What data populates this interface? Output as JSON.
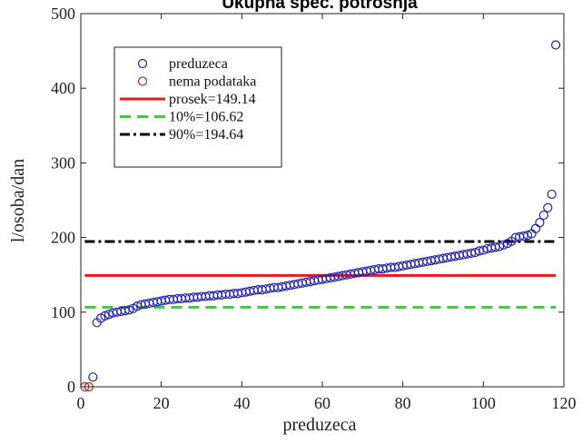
{
  "chart_data": {
    "type": "scatter",
    "title": "Ukupna spec. potrošnja",
    "xlabel": "preduzeca",
    "ylabel": "l/osoba/dan",
    "xlim": [
      0,
      120
    ],
    "ylim": [
      0,
      500
    ],
    "xticks": [
      0,
      20,
      40,
      60,
      80,
      100,
      120
    ],
    "yticks": [
      0,
      100,
      200,
      300,
      400,
      500
    ],
    "grid": false,
    "legend_position": "top-left",
    "series": [
      {
        "name": "preduzeca",
        "kind": "marker",
        "marker": "circle",
        "color": "#1f1fb4",
        "x": [
          3,
          4,
          5,
          6,
          7,
          8,
          9,
          10,
          11,
          12,
          13,
          14,
          15,
          16,
          17,
          18,
          19,
          20,
          21,
          22,
          23,
          24,
          25,
          26,
          27,
          28,
          29,
          30,
          31,
          32,
          33,
          34,
          35,
          36,
          37,
          38,
          39,
          40,
          41,
          42,
          43,
          44,
          45,
          46,
          47,
          48,
          49,
          50,
          51,
          52,
          53,
          54,
          55,
          56,
          57,
          58,
          59,
          60,
          61,
          62,
          63,
          64,
          65,
          66,
          67,
          68,
          69,
          70,
          71,
          72,
          73,
          74,
          75,
          76,
          77,
          78,
          79,
          80,
          81,
          82,
          83,
          84,
          85,
          86,
          87,
          88,
          89,
          90,
          91,
          92,
          93,
          94,
          95,
          96,
          97,
          98,
          99,
          100,
          101,
          102,
          103,
          104,
          105,
          106,
          107,
          108,
          109,
          110,
          111,
          112,
          113,
          114,
          115,
          116,
          117,
          118
        ],
        "y": [
          13,
          86,
          92,
          95,
          97,
          99,
          100,
          101,
          102,
          103,
          105,
          108,
          110,
          111,
          112,
          113,
          114,
          115,
          116,
          117,
          117,
          118,
          118,
          119,
          119,
          120,
          120,
          121,
          121,
          122,
          122,
          123,
          123,
          124,
          124,
          125,
          125,
          126,
          127,
          128,
          129,
          130,
          130,
          131,
          132,
          133,
          133,
          134,
          135,
          136,
          137,
          138,
          139,
          140,
          141,
          142,
          143,
          144,
          145,
          146,
          147,
          148,
          149,
          150,
          151,
          152,
          153,
          154,
          155,
          156,
          157,
          158,
          158,
          159,
          160,
          160,
          161,
          162,
          163,
          164,
          165,
          166,
          167,
          168,
          169,
          170,
          171,
          172,
          173,
          174,
          175,
          176,
          177,
          178,
          179,
          180,
          182,
          183,
          185,
          186,
          187,
          188,
          190,
          192,
          195,
          200,
          201,
          202,
          203,
          205,
          212,
          220,
          230,
          240,
          258,
          458
        ]
      },
      {
        "name": "nema podataka",
        "kind": "marker",
        "marker": "circle",
        "color": "#d42020",
        "x": [
          1,
          2
        ],
        "y": [
          0,
          0
        ]
      },
      {
        "name": "prosek=149.14",
        "kind": "hline",
        "value": 149.14,
        "x_range": [
          1,
          118
        ],
        "color": "#e8191a",
        "dash": "solid"
      },
      {
        "name": "10%=106.62",
        "kind": "hline",
        "value": 106.62,
        "x_range": [
          1,
          118
        ],
        "color": "#22dd22",
        "dash": "dashed"
      },
      {
        "name": "90%=194.64",
        "kind": "hline",
        "value": 194.64,
        "x_range": [
          1,
          118
        ],
        "color": "#000000",
        "dash": "dashdot"
      }
    ]
  }
}
